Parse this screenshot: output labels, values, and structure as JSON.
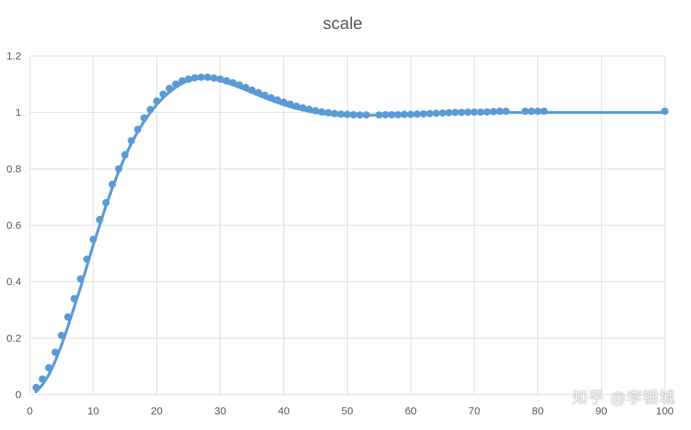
{
  "watermark": "知乎 @李银城",
  "chart_data": {
    "type": "scatter",
    "title": "scale",
    "xlabel": "",
    "ylabel": "",
    "xlim": [
      0,
      100
    ],
    "ylim": [
      0,
      1.2
    ],
    "x_ticks": [
      0,
      10,
      20,
      30,
      40,
      50,
      60,
      70,
      80,
      90,
      100
    ],
    "y_ticks": [
      0,
      0.2,
      0.4,
      0.6,
      0.8,
      1,
      1.2
    ],
    "grid": true,
    "legend": "none",
    "colors": {
      "series": "#5b9bd5",
      "grid": "#d9d9d9",
      "axis_text": "#595959",
      "title": "#595959"
    },
    "series": [
      {
        "type": "scatter",
        "points": [
          [
            1,
            0.025
          ],
          [
            2,
            0.055
          ],
          [
            3,
            0.095
          ],
          [
            4,
            0.15
          ],
          [
            5,
            0.21
          ],
          [
            6,
            0.275
          ],
          [
            7,
            0.34
          ],
          [
            8,
            0.41
          ],
          [
            9,
            0.48
          ],
          [
            10,
            0.55
          ],
          [
            11,
            0.62
          ],
          [
            12,
            0.68
          ],
          [
            13,
            0.745
          ],
          [
            14,
            0.8
          ],
          [
            15,
            0.85
          ],
          [
            16,
            0.9
          ],
          [
            17,
            0.94
          ],
          [
            18,
            0.98
          ],
          [
            19,
            1.01
          ],
          [
            20,
            1.04
          ],
          [
            21,
            1.065
          ],
          [
            22,
            1.085
          ],
          [
            23,
            1.1
          ],
          [
            24,
            1.112
          ],
          [
            25,
            1.118
          ],
          [
            26,
            1.123
          ],
          [
            27,
            1.125
          ],
          [
            28,
            1.125
          ],
          [
            29,
            1.122
          ],
          [
            30,
            1.118
          ],
          [
            31,
            1.112
          ],
          [
            32,
            1.105
          ],
          [
            33,
            1.097
          ],
          [
            34,
            1.088
          ],
          [
            35,
            1.079
          ],
          [
            36,
            1.07
          ],
          [
            37,
            1.061
          ],
          [
            38,
            1.052
          ],
          [
            39,
            1.044
          ],
          [
            40,
            1.036
          ],
          [
            41,
            1.029
          ],
          [
            42,
            1.022
          ],
          [
            43,
            1.016
          ],
          [
            44,
            1.011
          ],
          [
            45,
            1.006
          ],
          [
            46,
            1.002
          ],
          [
            47,
            0.999
          ],
          [
            48,
            0.996
          ],
          [
            49,
            0.994
          ],
          [
            50,
            0.993
          ],
          [
            51,
            0.992
          ],
          [
            52,
            0.991
          ],
          [
            53,
            0.991
          ],
          [
            55,
            0.991
          ],
          [
            56,
            0.992
          ],
          [
            57,
            0.992
          ],
          [
            58,
            0.992
          ],
          [
            59,
            0.993
          ],
          [
            60,
            0.993
          ],
          [
            61,
            0.994
          ],
          [
            62,
            0.995
          ],
          [
            63,
            0.996
          ],
          [
            64,
            0.997
          ],
          [
            65,
            0.998
          ],
          [
            66,
            0.999
          ],
          [
            67,
            1.0
          ],
          [
            68,
            1.0
          ],
          [
            69,
            1.001
          ],
          [
            70,
            1.001
          ],
          [
            71,
            1.001
          ],
          [
            72,
            1.002
          ],
          [
            73,
            1.003
          ],
          [
            74,
            1.004
          ],
          [
            75,
            1.004
          ],
          [
            78,
            1.004
          ],
          [
            79,
            1.004
          ],
          [
            80,
            1.004
          ],
          [
            81,
            1.004
          ],
          [
            100,
            1.004
          ]
        ]
      },
      {
        "type": "line",
        "points": [
          [
            1,
            0.01
          ],
          [
            2,
            0.035
          ],
          [
            3,
            0.07
          ],
          [
            4,
            0.118
          ],
          [
            5,
            0.175
          ],
          [
            6,
            0.24
          ],
          [
            7,
            0.31
          ],
          [
            8,
            0.38
          ],
          [
            9,
            0.455
          ],
          [
            10,
            0.53
          ],
          [
            11,
            0.6
          ],
          [
            12,
            0.668
          ],
          [
            13,
            0.732
          ],
          [
            14,
            0.79
          ],
          [
            15,
            0.843
          ],
          [
            16,
            0.89
          ],
          [
            17,
            0.932
          ],
          [
            18,
            0.968
          ],
          [
            19,
            1.0
          ],
          [
            20,
            1.028
          ],
          [
            21,
            1.052
          ],
          [
            22,
            1.072
          ],
          [
            23,
            1.089
          ],
          [
            24,
            1.103
          ],
          [
            25,
            1.113
          ],
          [
            26,
            1.119
          ],
          [
            27,
            1.122
          ],
          [
            28,
            1.122
          ],
          [
            29,
            1.119
          ],
          [
            30,
            1.113
          ],
          [
            32,
            1.098
          ],
          [
            34,
            1.08
          ],
          [
            36,
            1.061
          ],
          [
            38,
            1.043
          ],
          [
            40,
            1.027
          ],
          [
            42,
            1.014
          ],
          [
            44,
            1.004
          ],
          [
            46,
            0.996
          ],
          [
            48,
            0.991
          ],
          [
            50,
            0.989
          ],
          [
            52,
            0.989
          ],
          [
            54,
            0.99
          ],
          [
            56,
            0.991
          ],
          [
            58,
            0.993
          ],
          [
            60,
            0.995
          ],
          [
            62,
            0.997
          ],
          [
            64,
            0.998
          ],
          [
            66,
            0.999
          ],
          [
            68,
            1.0
          ],
          [
            70,
            1.0
          ],
          [
            75,
            1.0
          ],
          [
            80,
            1.0
          ],
          [
            90,
            1.0
          ],
          [
            100,
            1.0
          ]
        ]
      }
    ]
  }
}
